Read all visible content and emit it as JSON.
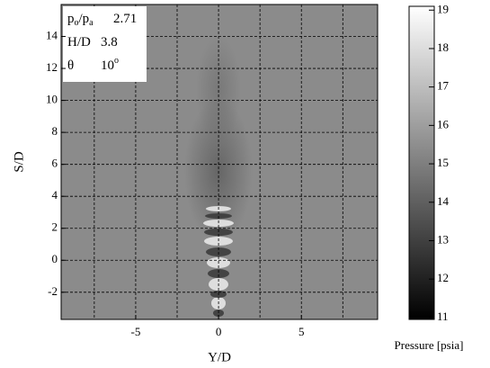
{
  "chart_data": {
    "type": "image",
    "xlabel": "Y/D",
    "ylabel": "S/D",
    "xlim": [
      -9.5,
      9.6
    ],
    "ylim": [
      -3.7,
      16
    ],
    "xticks": [
      -5,
      0,
      5
    ],
    "x_minor_grid": [
      -7.5,
      -2.5,
      2.5,
      7.5
    ],
    "yticks": [
      -2,
      0,
      2,
      4,
      6,
      8,
      10,
      12,
      14
    ],
    "grid": true,
    "colorbar": {
      "label": "Pressure [psia]",
      "lim": [
        10.95,
        19.1
      ],
      "ticks": [
        11,
        12,
        13,
        14,
        15,
        16,
        17,
        18,
        19
      ]
    },
    "annotation": [
      {
        "parts": [
          "p",
          "o",
          "/p",
          "a"
        ],
        "value": 2.71
      },
      {
        "parts": [
          "H/D"
        ],
        "value": 3.8
      },
      {
        "parts": [
          "θ"
        ],
        "value": 10,
        "sup": "o"
      }
    ]
  }
}
